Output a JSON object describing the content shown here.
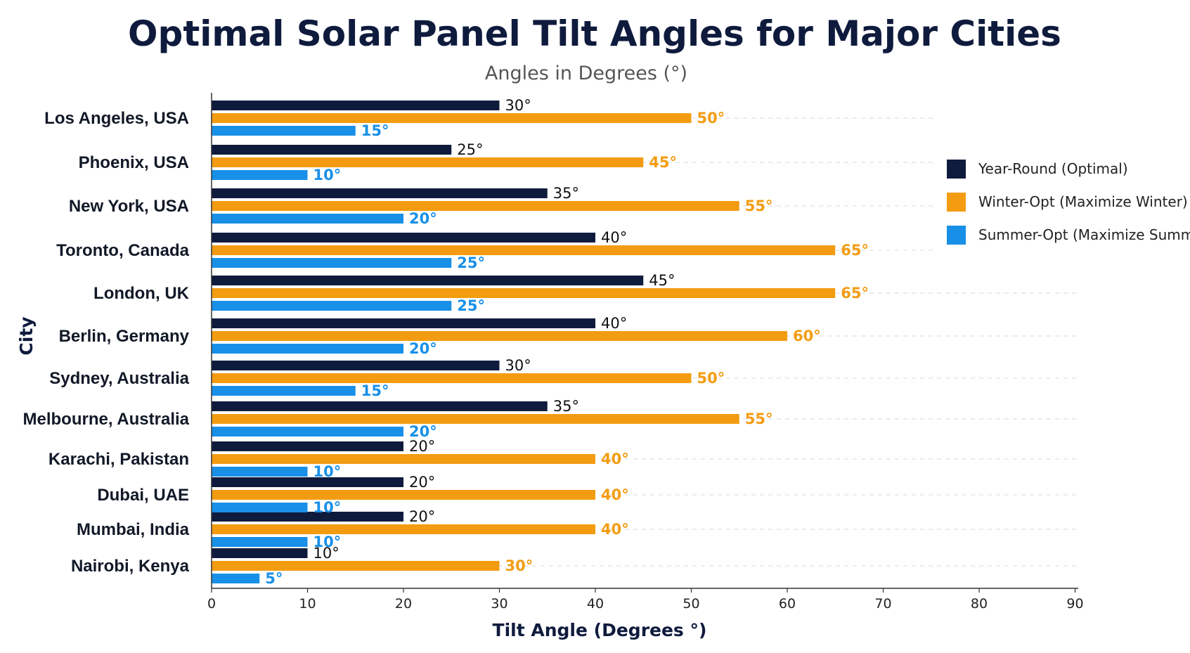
{
  "chart_data": {
    "type": "bar",
    "orientation": "horizontal",
    "title": "Optimal Solar Panel Tilt Angles for Major Cities",
    "subtitle": "Angles in Degrees (°)",
    "xlabel": "Tilt Angle (Degrees °)",
    "ylabel": "City",
    "xlim": [
      0,
      90
    ],
    "xticks": [
      "0",
      "10",
      "20",
      "30",
      "40",
      "50",
      "60",
      "70",
      "80",
      "90"
    ],
    "grid": "horizontal-dashed",
    "legend_position": "top-right",
    "categories": [
      "Los Angeles, USA",
      "Phoenix, USA",
      "New York, USA",
      "Toronto, Canada",
      "London, UK",
      "Berlin, Germany",
      "Sydney, Australia",
      "Melbourne, Australia",
      "Karachi, Pakistan",
      "Dubai, UAE",
      "Mumbai, India",
      "Nairobi, Kenya"
    ],
    "series": [
      {
        "name": "Year-Round (Optimal)",
        "color": "#0f1b3d",
        "label_color": "#111111",
        "values": [
          30,
          25,
          35,
          40,
          45,
          40,
          30,
          35,
          20,
          20,
          20,
          10
        ],
        "labels": [
          "30°",
          "25°",
          "35°",
          "40°",
          "45°",
          "40°",
          "30°",
          "35°",
          "20°",
          "20°",
          "20°",
          "10°"
        ]
      },
      {
        "name": "Winter-Opt (Maximize Winter)",
        "color": "#f39c12",
        "label_color": "#f39c12",
        "values": [
          50,
          45,
          55,
          65,
          65,
          60,
          50,
          55,
          40,
          40,
          40,
          30
        ],
        "labels": [
          "50°",
          "45°",
          "55°",
          "65°",
          "65°",
          "60°",
          "50°",
          "55°",
          "40°",
          "40°",
          "40°",
          "30°"
        ]
      },
      {
        "name": "Summer-Opt (Maximize Summer)",
        "color": "#1890e8",
        "label_color": "#1890e8",
        "values": [
          15,
          10,
          20,
          25,
          25,
          20,
          15,
          20,
          10,
          10,
          10,
          5
        ],
        "labels": [
          "15°",
          "10°",
          "20°",
          "25°",
          "25°",
          "20°",
          "15°",
          "20°",
          "10°",
          "10°",
          "10°",
          "5°"
        ]
      }
    ]
  }
}
